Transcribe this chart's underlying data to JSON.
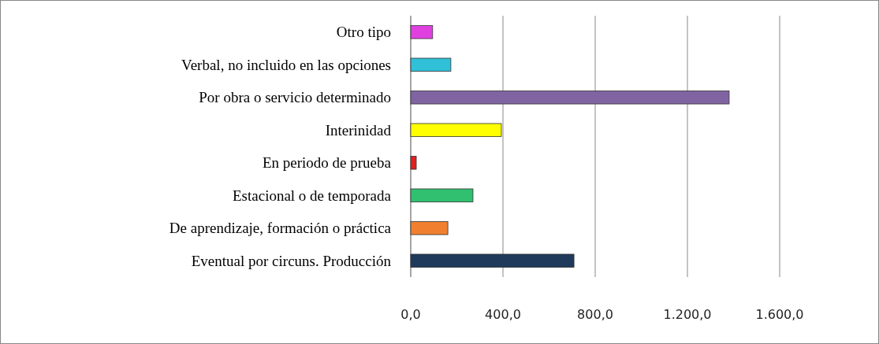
{
  "chart_data": {
    "type": "bar",
    "orientation": "horizontal",
    "categories": [
      "Otro tipo",
      "Verbal, no incluido en las opciones",
      "Por obra o servicio determinado",
      "Interinidad",
      "En periodo de prueba",
      "Estacional o de temporada",
      "De aprendizaje, formación o práctica",
      "Eventual por circuns. Producción"
    ],
    "values": [
      95,
      174,
      1381,
      393,
      24,
      270,
      161,
      708
    ],
    "colors": [
      "#e040e0",
      "#30c0d8",
      "#8064a2",
      "#ffff00",
      "#e02020",
      "#30c070",
      "#f08030",
      "#1f3a5a"
    ],
    "xlim": [
      0,
      1600
    ],
    "xticks": [
      {
        "value": 0,
        "label": "0,0"
      },
      {
        "value": 400,
        "label": "400,0"
      },
      {
        "value": 800,
        "label": "800,0"
      },
      {
        "value": 1200,
        "label": "1.200,0"
      },
      {
        "value": 1600,
        "label": "1.600,0"
      }
    ],
    "grid": "x"
  }
}
